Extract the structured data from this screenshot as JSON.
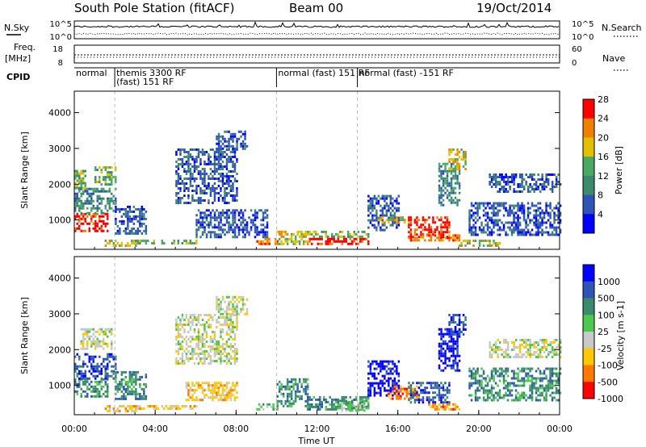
{
  "header": {
    "title": "South Pole Station (fitACF)",
    "beam": "Beam 00",
    "date": "19/Oct/2014"
  },
  "noise_panel": {
    "left_label": "N.Sky",
    "right_label": "N.Search",
    "left_ticks": [
      "10^5",
      "10^0"
    ],
    "right_ticks": [
      "10^5",
      "10^0"
    ]
  },
  "freq_panel": {
    "left_label_1": "Freq.",
    "left_label_2": "[MHz]",
    "right_label": "Nave",
    "left_ticks": [
      "18",
      "8"
    ],
    "right_ticks": [
      "60",
      "0"
    ]
  },
  "cpid_panel": {
    "label": "CPID",
    "segments": [
      {
        "start_hour": 0.0,
        "end_hour": 2.0,
        "lines": [
          "normal"
        ]
      },
      {
        "start_hour": 2.0,
        "end_hour": 10.0,
        "lines": [
          "themis 3300 RF",
          "(fast) 151 RF"
        ]
      },
      {
        "start_hour": 10.0,
        "end_hour": 14.0,
        "lines": [
          "normal (fast)  151 RF"
        ]
      },
      {
        "start_hour": 14.0,
        "end_hour": 24.0,
        "lines": [
          "normal (fast) -151 RF"
        ]
      }
    ]
  },
  "chart_data": [
    {
      "type": "heatmap",
      "name": "power",
      "ylabel": "Slant Range [km]",
      "ylim": [
        180,
        4600
      ],
      "yticks": [
        1000,
        2000,
        3000,
        4000
      ],
      "xlim": [
        0,
        24
      ],
      "colorbar_label": "Power [dB]",
      "colorbar_ticks": [
        "4",
        "8",
        "12",
        "16",
        "20",
        "24",
        "28"
      ],
      "colorbar_colors": [
        "#0000ff",
        "#2e54b8",
        "#3c8a6e",
        "#4aa862",
        "#e2c000",
        "#f08000",
        "#ff0000"
      ],
      "regions": [
        {
          "t": [
            0.0,
            1.6
          ],
          "r": [
            700,
            1200
          ],
          "level": 6
        },
        {
          "t": [
            0.0,
            2.0
          ],
          "r": [
            1200,
            1900
          ],
          "level": 2
        },
        {
          "t": [
            0.0,
            0.5
          ],
          "r": [
            1900,
            2400
          ],
          "level": 3
        },
        {
          "t": [
            1.0,
            2.0
          ],
          "r": [
            2000,
            2500
          ],
          "level": 3
        },
        {
          "t": [
            1.5,
            3.0
          ],
          "r": [
            300,
            450
          ],
          "level": 4
        },
        {
          "t": [
            2.0,
            3.5
          ],
          "r": [
            600,
            1400
          ],
          "level": 1
        },
        {
          "t": [
            3.0,
            6.0
          ],
          "r": [
            350,
            450
          ],
          "level": 3
        },
        {
          "t": [
            5.0,
            8.0
          ],
          "r": [
            1500,
            3000
          ],
          "level": 1
        },
        {
          "t": [
            7.0,
            8.5
          ],
          "r": [
            3000,
            3500
          ],
          "level": 1
        },
        {
          "t": [
            6.0,
            9.5
          ],
          "r": [
            500,
            1300
          ],
          "level": 1
        },
        {
          "t": [
            9.0,
            10.0
          ],
          "r": [
            300,
            500
          ],
          "level": 5
        },
        {
          "t": [
            10.0,
            11.5
          ],
          "r": [
            300,
            700
          ],
          "level": 4
        },
        {
          "t": [
            11.5,
            14.5
          ],
          "r": [
            300,
            500
          ],
          "level": 6
        },
        {
          "t": [
            11.5,
            14.5
          ],
          "r": [
            500,
            700
          ],
          "level": 3
        },
        {
          "t": [
            14.5,
            16.0
          ],
          "r": [
            700,
            1700
          ],
          "level": 1
        },
        {
          "t": [
            15.0,
            16.5
          ],
          "r": [
            900,
            1100
          ],
          "level": 4
        },
        {
          "t": [
            16.5,
            18.5
          ],
          "r": [
            500,
            1100
          ],
          "level": 6
        },
        {
          "t": [
            16.5,
            19.0
          ],
          "r": [
            400,
            600
          ],
          "level": 5
        },
        {
          "t": [
            18.0,
            19.0
          ],
          "r": [
            1400,
            2600
          ],
          "level": 2
        },
        {
          "t": [
            18.5,
            19.3
          ],
          "r": [
            2400,
            3000
          ],
          "level": 4
        },
        {
          "t": [
            19.0,
            21.0
          ],
          "r": [
            300,
            450
          ],
          "level": 4
        },
        {
          "t": [
            19.5,
            24.0
          ],
          "r": [
            600,
            1500
          ],
          "level": 1
        },
        {
          "t": [
            20.5,
            24.0
          ],
          "r": [
            1800,
            2300
          ],
          "level": 1
        }
      ]
    },
    {
      "type": "heatmap",
      "name": "velocity",
      "ylabel": "Slant Range [km]",
      "ylim": [
        180,
        4600
      ],
      "yticks": [
        1000,
        2000,
        3000,
        4000
      ],
      "xlim": [
        0,
        24
      ],
      "xlabel": "Time UT",
      "xticks": [
        "00:00",
        "04:00",
        "08:00",
        "12:00",
        "16:00",
        "20:00",
        "00:00"
      ],
      "xtick_hours": [
        0,
        4,
        8,
        12,
        16,
        20,
        24
      ],
      "colorbar_label": "Velocity [m s-1]",
      "colorbar_ticks": [
        "1000",
        "500",
        "100",
        "25",
        "-25",
        "-100",
        "-500",
        "-1000"
      ],
      "colorbar_colors": [
        "#0000ff",
        "#2e54b8",
        "#3c8a6e",
        "#4cc84c",
        "#c8c8c8",
        "#ffc800",
        "#ff7800",
        "#ff0000"
      ],
      "regions": [
        {
          "t": [
            0.0,
            1.6
          ],
          "r": [
            700,
            1200
          ],
          "level": 2
        },
        {
          "t": [
            0.0,
            2.0
          ],
          "r": [
            1200,
            1900
          ],
          "level": 1
        },
        {
          "t": [
            0.3,
            1.8
          ],
          "r": [
            2000,
            2600
          ],
          "level": 4
        },
        {
          "t": [
            1.5,
            3.0
          ],
          "r": [
            300,
            450
          ],
          "level": 5
        },
        {
          "t": [
            2.0,
            3.5
          ],
          "r": [
            600,
            1400
          ],
          "level": 2
        },
        {
          "t": [
            3.0,
            6.0
          ],
          "r": [
            350,
            450
          ],
          "level": 5
        },
        {
          "t": [
            5.0,
            8.0
          ],
          "r": [
            1600,
            3000
          ],
          "level": 4
        },
        {
          "t": [
            5.5,
            8.0
          ],
          "r": [
            600,
            1100
          ],
          "level": 5
        },
        {
          "t": [
            7.0,
            8.5
          ],
          "r": [
            3000,
            3500
          ],
          "level": 4
        },
        {
          "t": [
            9.0,
            10.0
          ],
          "r": [
            300,
            500
          ],
          "level": 3
        },
        {
          "t": [
            10.0,
            11.5
          ],
          "r": [
            400,
            1200
          ],
          "level": 2
        },
        {
          "t": [
            11.5,
            14.5
          ],
          "r": [
            300,
            700
          ],
          "level": 2
        },
        {
          "t": [
            13.0,
            14.5
          ],
          "r": [
            300,
            600
          ],
          "level": 3
        },
        {
          "t": [
            14.5,
            16.0
          ],
          "r": [
            700,
            1700
          ],
          "level": 0
        },
        {
          "t": [
            15.5,
            17.0
          ],
          "r": [
            600,
            1000
          ],
          "level": 6
        },
        {
          "t": [
            16.5,
            18.5
          ],
          "r": [
            500,
            1100
          ],
          "level": 1
        },
        {
          "t": [
            17.5,
            19.0
          ],
          "r": [
            300,
            500
          ],
          "level": 6
        },
        {
          "t": [
            18.0,
            19.0
          ],
          "r": [
            1400,
            2600
          ],
          "level": 0
        },
        {
          "t": [
            18.5,
            19.3
          ],
          "r": [
            2400,
            3000
          ],
          "level": 1
        },
        {
          "t": [
            19.5,
            24.0
          ],
          "r": [
            600,
            1500
          ],
          "level": 2
        },
        {
          "t": [
            20.5,
            24.0
          ],
          "r": [
            1800,
            2300
          ],
          "level": 4
        }
      ]
    }
  ]
}
